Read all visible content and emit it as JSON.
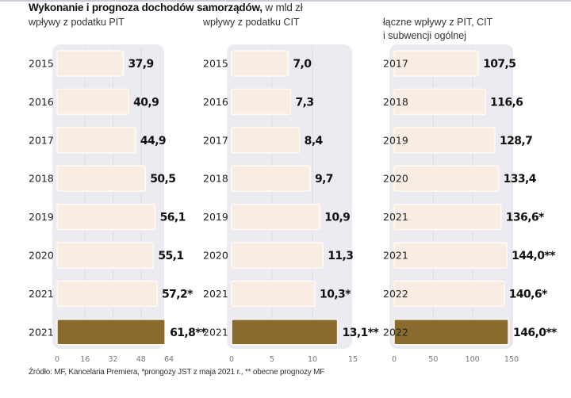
{
  "title": {
    "bold": "Wykonanie i prognoza dochodów samorządów,",
    "unit": " w mld zł"
  },
  "source": "Źródło: MF, Kancelaria Premiera, *prongozy JST z maja 2021 r., ** obecne prognozy MF",
  "colors": {
    "bar_light": "#f9ece2",
    "bar_dark": "#8a6b2f",
    "panel_bg": "#ebebf1",
    "gridline": "#dcdce4"
  },
  "chart_data": [
    {
      "type": "bar",
      "orientation": "horizontal",
      "title": "wpływy z podatku PIT",
      "unit": "mld zł",
      "categories": [
        "2015",
        "2016",
        "2017",
        "2018",
        "2019",
        "2020",
        "2021",
        "2021"
      ],
      "values": [
        37.9,
        40.9,
        44.9,
        50.5,
        56.1,
        55.1,
        57.2,
        61.8
      ],
      "labels": [
        "37,9",
        "40,9",
        "44,9",
        "50,5",
        "56,1",
        "55,1",
        "57,2*",
        "61,8**"
      ],
      "highlight": [
        false,
        false,
        false,
        false,
        false,
        false,
        false,
        true
      ],
      "xlim": [
        0,
        64
      ],
      "xticks": [
        "0",
        "16",
        "32",
        "48",
        "64"
      ],
      "xtick_values": [
        0,
        16,
        32,
        48,
        64
      ],
      "grid": true
    },
    {
      "type": "bar",
      "orientation": "horizontal",
      "title": "wpływy z podatku CIT",
      "unit": "mld zł",
      "categories": [
        "2015",
        "2016",
        "2017",
        "2018",
        "2019",
        "2020",
        "2021",
        "2021"
      ],
      "values": [
        7.0,
        7.3,
        8.4,
        9.7,
        10.9,
        11.3,
        10.3,
        13.1
      ],
      "labels": [
        "7,0",
        "7,3",
        "8,4",
        "9,7",
        "10,9",
        "11,3",
        "10,3*",
        "13,1**"
      ],
      "highlight": [
        false,
        false,
        false,
        false,
        false,
        false,
        false,
        true
      ],
      "xlim": [
        0,
        15
      ],
      "xticks": [
        "0",
        "5",
        "10",
        "15"
      ],
      "xtick_values": [
        0,
        5,
        10,
        15
      ],
      "grid": true
    },
    {
      "type": "bar",
      "orientation": "horizontal",
      "title": "łączne wpływy z PIT, CIT\ni subwencji ogólnej",
      "unit": "mld zł",
      "categories": [
        "2017",
        "2018",
        "2019",
        "2020",
        "2021",
        "2021",
        "2022",
        "2022"
      ],
      "values": [
        107.5,
        116.6,
        128.7,
        133.4,
        136.6,
        144.0,
        140.6,
        146.0
      ],
      "labels": [
        "107,5",
        "116,6",
        "128,7",
        "133,4",
        "136,6*",
        "144,0**",
        "140,6*",
        "146,0**"
      ],
      "highlight": [
        false,
        false,
        false,
        false,
        false,
        false,
        false,
        true
      ],
      "xlim": [
        0,
        150
      ],
      "xticks": [
        "0",
        "50",
        "100",
        "150"
      ],
      "xtick_values": [
        0,
        50,
        100,
        150
      ],
      "grid": true
    }
  ]
}
